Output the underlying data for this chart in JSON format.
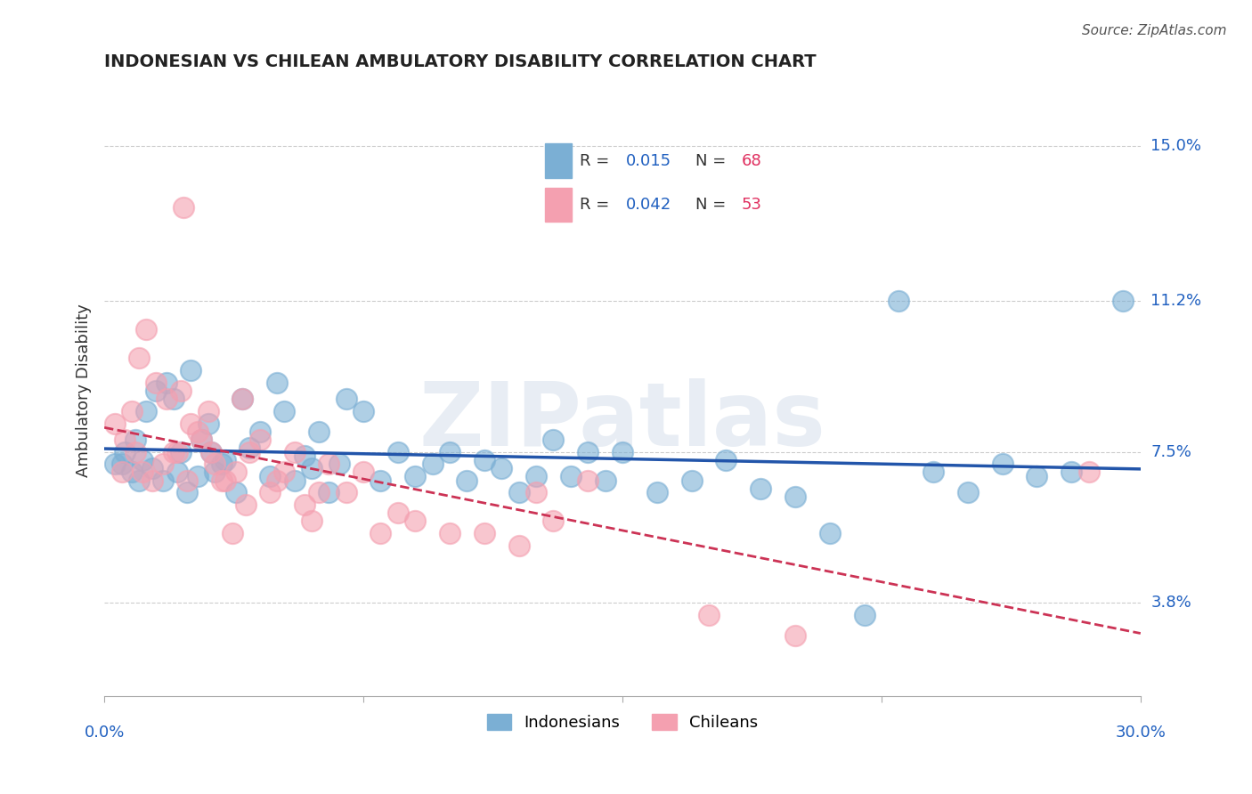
{
  "title": "INDONESIAN VS CHILEAN AMBULATORY DISABILITY CORRELATION CHART",
  "source": "Source: ZipAtlas.com",
  "ylabel": "Ambulatory Disability",
  "xlim": [
    0.0,
    30.0
  ],
  "ylim": [
    1.5,
    16.5
  ],
  "yticks": [
    3.8,
    7.5,
    11.2,
    15.0
  ],
  "indonesian_R": 0.015,
  "indonesian_N": 68,
  "chilean_R": 0.042,
  "chilean_N": 53,
  "indonesian_color": "#7bafd4",
  "chilean_color": "#f4a0b0",
  "trend_indonesian_color": "#2255aa",
  "trend_chilean_color": "#cc3355",
  "legend_R_color": "#2060c0",
  "legend_N_color": "#e03060",
  "background_color": "#ffffff",
  "grid_color": "#cccccc",
  "watermark": "ZIPatlas",
  "indonesian_x": [
    0.5,
    0.8,
    1.0,
    1.2,
    1.5,
    1.8,
    2.0,
    2.2,
    2.5,
    2.8,
    3.0,
    3.2,
    3.5,
    3.8,
    4.0,
    4.2,
    4.5,
    4.8,
    5.0,
    5.2,
    5.5,
    5.8,
    6.0,
    6.2,
    6.5,
    6.8,
    7.0,
    7.5,
    8.0,
    8.5,
    9.0,
    9.5,
    10.0,
    10.5,
    11.0,
    11.5,
    12.0,
    12.5,
    13.0,
    13.5,
    14.0,
    14.5,
    15.0,
    16.0,
    17.0,
    18.0,
    19.0,
    20.0,
    21.0,
    22.0,
    23.0,
    24.0,
    25.0,
    26.0,
    27.0,
    28.0,
    0.3,
    0.6,
    0.9,
    1.1,
    1.4,
    1.7,
    2.1,
    2.4,
    2.7,
    3.1,
    3.4,
    29.5
  ],
  "indonesian_y": [
    7.2,
    7.0,
    6.8,
    8.5,
    9.0,
    9.2,
    8.8,
    7.5,
    9.5,
    7.8,
    8.2,
    7.0,
    7.3,
    6.5,
    8.8,
    7.6,
    8.0,
    6.9,
    9.2,
    8.5,
    6.8,
    7.4,
    7.1,
    8.0,
    6.5,
    7.2,
    8.8,
    8.5,
    6.8,
    7.5,
    6.9,
    7.2,
    7.5,
    6.8,
    7.3,
    7.1,
    6.5,
    6.9,
    7.8,
    6.9,
    7.5,
    6.8,
    7.5,
    6.5,
    6.8,
    7.3,
    6.6,
    6.4,
    5.5,
    3.5,
    11.2,
    7.0,
    6.5,
    7.2,
    6.9,
    7.0,
    7.2,
    7.5,
    7.8,
    7.3,
    7.1,
    6.8,
    7.0,
    6.5,
    6.9,
    7.5,
    7.2,
    11.2
  ],
  "chilean_x": [
    0.5,
    0.8,
    1.0,
    1.2,
    1.5,
    1.8,
    2.0,
    2.2,
    2.5,
    2.8,
    3.0,
    3.2,
    3.5,
    3.8,
    4.0,
    4.2,
    4.5,
    4.8,
    5.0,
    5.2,
    5.5,
    5.8,
    6.0,
    6.2,
    6.5,
    7.0,
    7.5,
    8.0,
    8.5,
    9.0,
    10.0,
    11.0,
    12.0,
    12.5,
    13.0,
    14.0,
    0.3,
    0.6,
    0.9,
    1.1,
    1.4,
    1.7,
    2.1,
    2.4,
    2.7,
    3.1,
    3.4,
    3.7,
    4.1,
    2.3,
    17.5,
    20.0,
    28.5
  ],
  "chilean_y": [
    7.0,
    8.5,
    9.8,
    10.5,
    9.2,
    8.8,
    7.5,
    9.0,
    8.2,
    7.8,
    8.5,
    7.2,
    6.8,
    7.0,
    8.8,
    7.5,
    7.8,
    6.5,
    6.8,
    7.0,
    7.5,
    6.2,
    5.8,
    6.5,
    7.2,
    6.5,
    7.0,
    5.5,
    6.0,
    5.8,
    5.5,
    5.5,
    5.2,
    6.5,
    5.8,
    6.8,
    8.2,
    7.8,
    7.5,
    7.0,
    6.8,
    7.2,
    7.5,
    6.8,
    8.0,
    7.5,
    6.8,
    5.5,
    6.2,
    13.5,
    3.5,
    3.0,
    7.0
  ]
}
